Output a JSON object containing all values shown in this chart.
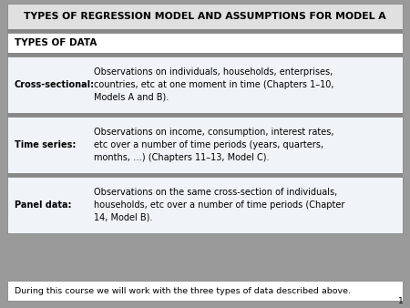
{
  "title": "TYPES OF REGRESSION MODEL AND ASSUMPTIONS FOR MODEL A",
  "title_bg": "#e0e0e0",
  "title_color": "#000000",
  "slide_bg": "#9a9a9a",
  "row_bg": "#f0f4f8",
  "white_bg": "#ffffff",
  "header_bg": "#ffffff",
  "sep_color": "#888888",
  "section_header": "TYPES OF DATA",
  "rows": [
    {
      "label": "Cross-sectional:",
      "text": "Observations on individuals, households, enterprises,\ncountries, etc at one moment in time (Chapters 1–10,\nModels A and B)."
    },
    {
      "label": "Time series:",
      "text": "Observations on income, consumption, interest rates,\netc over a number of time periods (years, quarters,\nmonths, …) (Chapters 11–13, Model C)."
    },
    {
      "label": "Panel data:",
      "text": "Observations on the same cross-section of individuals,\nhouseholds, etc over a number of time periods (Chapter\n14, Model B)."
    }
  ],
  "footer": "During this course we will work with the three types of data described above.",
  "page_number": "1",
  "label_fontsize": 7.0,
  "text_fontsize": 7.0,
  "title_fontsize": 7.8,
  "header_fontsize": 7.5,
  "footer_fontsize": 6.8
}
